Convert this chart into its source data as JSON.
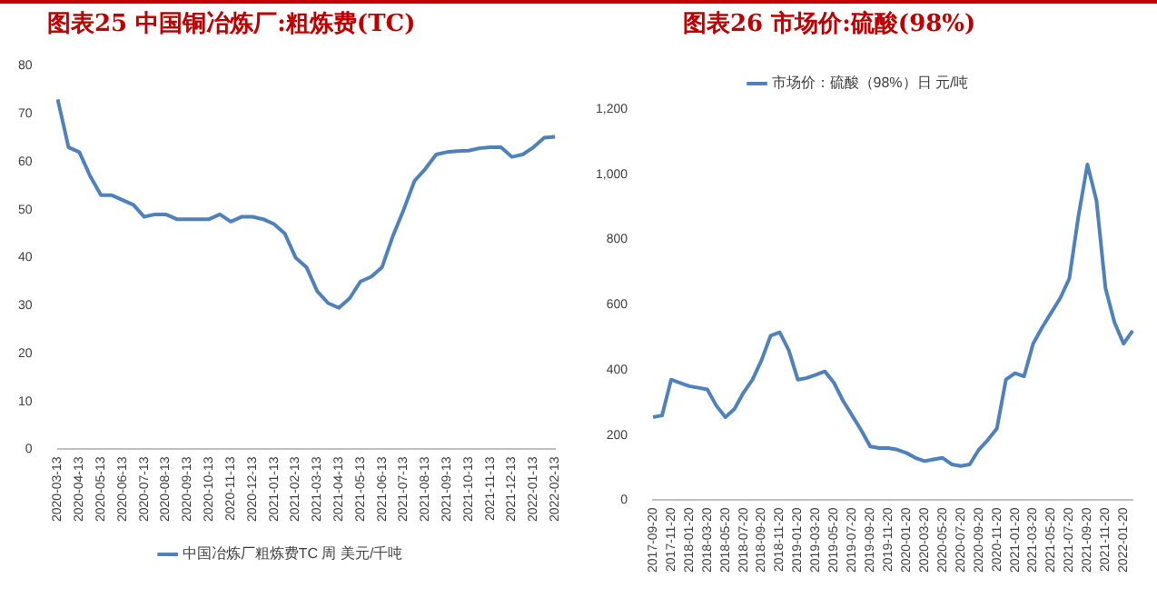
{
  "chart_data": [
    {
      "type": "line",
      "title": "图表25  中国铜冶炼厂:粗炼费(TC)",
      "categories": [
        "2020-03-13",
        null,
        "2020-04-13",
        null,
        "2020-05-13",
        null,
        "2020-06-13",
        null,
        "2020-07-13",
        null,
        "2020-08-13",
        null,
        "2020-09-13",
        null,
        "2020-10-13",
        null,
        "2020-11-13",
        null,
        "2020-12-13",
        null,
        "2021-01-13",
        null,
        "2021-02-13",
        null,
        "2021-03-13",
        null,
        "2021-04-13",
        null,
        "2021-05-13",
        null,
        "2021-06-13",
        null,
        "2021-07-13",
        null,
        "2021-08-13",
        null,
        "2021-09-13",
        null,
        "2021-10-13",
        null,
        "2021-11-13",
        null,
        "2021-12-13",
        null,
        "2022-01-13",
        null,
        "2022-02-13"
      ],
      "series": [
        {
          "name": "中国冶炼厂粗炼费TC 周 美元/千吨",
          "color": "#4f81bd",
          "values": [
            73,
            63,
            62,
            57,
            53,
            53,
            52,
            51,
            48.5,
            49,
            49,
            48,
            48,
            48,
            48,
            49,
            47.5,
            48.5,
            48.5,
            48,
            47,
            45,
            40,
            38,
            33,
            30.5,
            29.5,
            31.5,
            35,
            36,
            38,
            44.5,
            50,
            56,
            58.5,
            61.5,
            62,
            62.2,
            62.3,
            62.8,
            63,
            63,
            61,
            61.5,
            63,
            65,
            65.2
          ]
        }
      ],
      "ylim": [
        0,
        80
      ],
      "yticks": [
        0,
        10,
        20,
        30,
        40,
        50,
        60,
        70,
        80
      ],
      "grid": false,
      "legend": "bottom",
      "marker": "none"
    },
    {
      "type": "line",
      "title": "图表26  市场价:硫酸(98%)",
      "categories": [
        "2017-09-20",
        null,
        "2017-11-20",
        null,
        "2018-01-20",
        null,
        "2018-03-20",
        null,
        "2018-05-20",
        null,
        "2018-07-20",
        null,
        "2018-09-20",
        null,
        "2018-11-20",
        null,
        "2019-01-20",
        null,
        "2019-03-20",
        null,
        "2019-05-20",
        null,
        "2019-07-20",
        null,
        "2019-09-20",
        null,
        "2019-11-20",
        null,
        "2020-01-20",
        null,
        "2020-03-20",
        null,
        "2020-05-20",
        null,
        "2020-07-20",
        null,
        "2020-09-20",
        null,
        "2020-11-20",
        null,
        "2021-01-20",
        null,
        "2021-03-20",
        null,
        "2021-05-20",
        null,
        "2021-07-20",
        null,
        "2021-09-20",
        null,
        "2021-11-20",
        null,
        "2022-01-20",
        null
      ],
      "series": [
        {
          "name": "市场价：硫酸（98%）日 元/吨",
          "color": "#4f81bd",
          "values": [
            255,
            260,
            370,
            360,
            350,
            345,
            340,
            290,
            255,
            280,
            330,
            370,
            430,
            505,
            515,
            460,
            370,
            375,
            385,
            395,
            360,
            305,
            260,
            215,
            165,
            160,
            160,
            155,
            145,
            130,
            120,
            125,
            130,
            110,
            105,
            110,
            155,
            185,
            220,
            370,
            390,
            380,
            480,
            530,
            575,
            620,
            680,
            870,
            1030,
            920,
            650,
            545,
            480,
            520
          ]
        }
      ],
      "ylim": [
        0,
        1200
      ],
      "yticks": [
        0,
        200,
        400,
        600,
        800,
        {
          "value": 1000,
          "label": "1,000"
        },
        {
          "value": 1200,
          "label": "1,200"
        }
      ],
      "grid": false,
      "legend": "top",
      "marker": "none"
    }
  ]
}
